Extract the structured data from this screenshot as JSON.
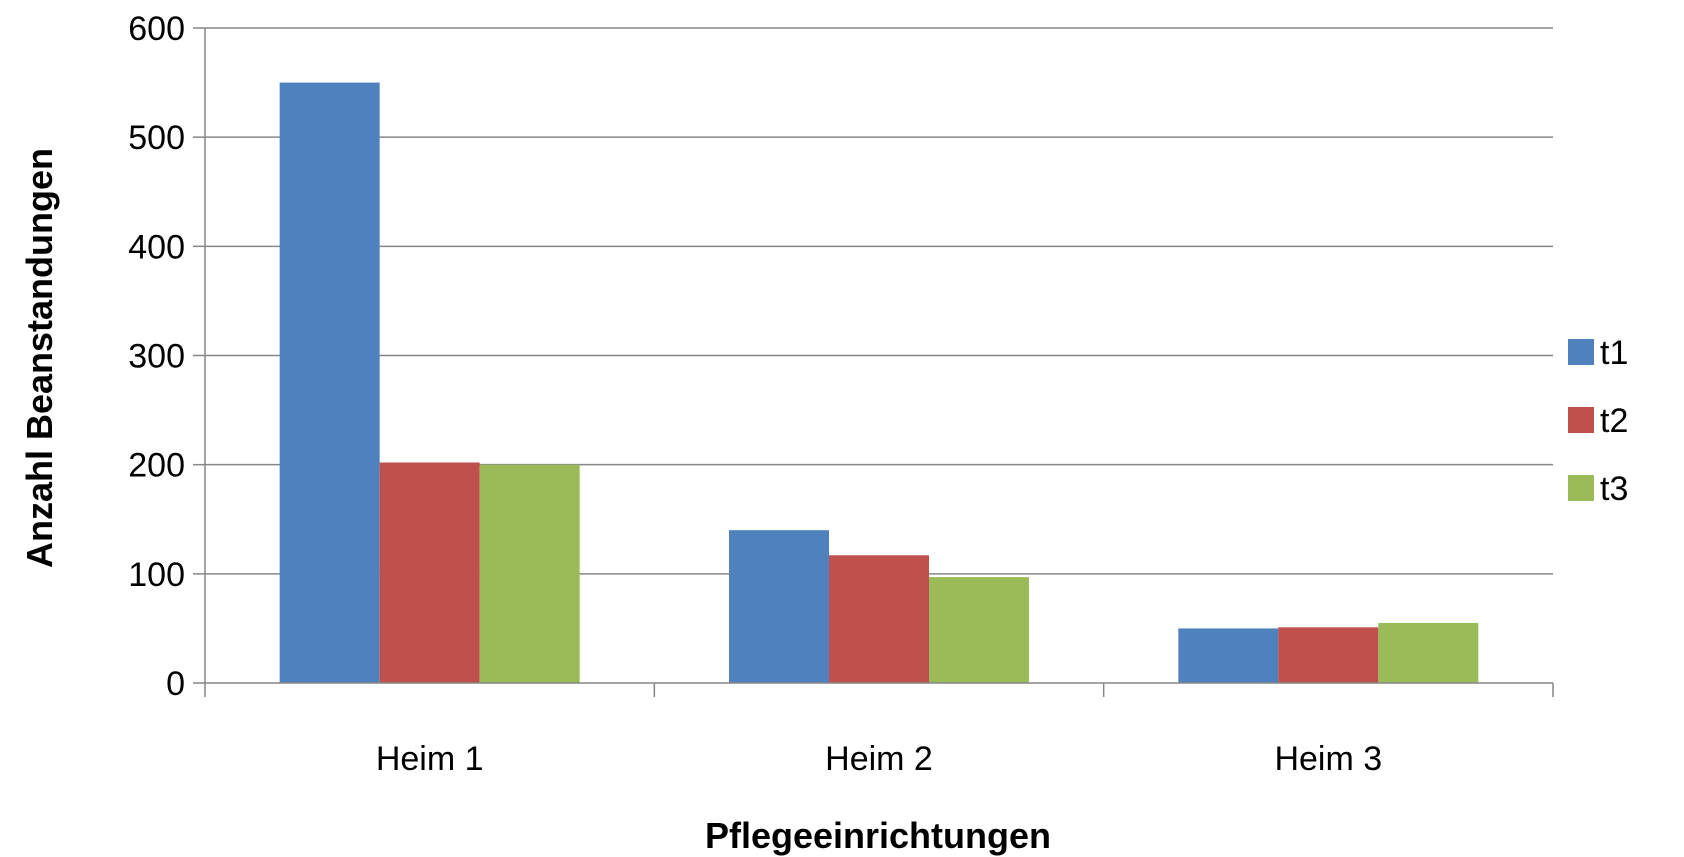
{
  "chart_data": {
    "type": "bar",
    "categories": [
      "Heim 1",
      "Heim 2",
      "Heim 3"
    ],
    "series": [
      {
        "name": "t1",
        "color": "#4F81BD",
        "values": [
          550,
          140,
          50
        ]
      },
      {
        "name": "t2",
        "color": "#C0504D",
        "values": [
          202,
          117,
          51
        ]
      },
      {
        "name": "t3",
        "color": "#9BBB59",
        "values": [
          200,
          97,
          55
        ]
      }
    ],
    "title": "",
    "xlabel": "Pflegeeinrichtungen",
    "ylabel": "Anzahl Beanstandungen",
    "ylim": [
      0,
      600
    ],
    "yticks": [
      0,
      100,
      200,
      300,
      400,
      500,
      600
    ],
    "grid": true,
    "legend_position": "right"
  }
}
